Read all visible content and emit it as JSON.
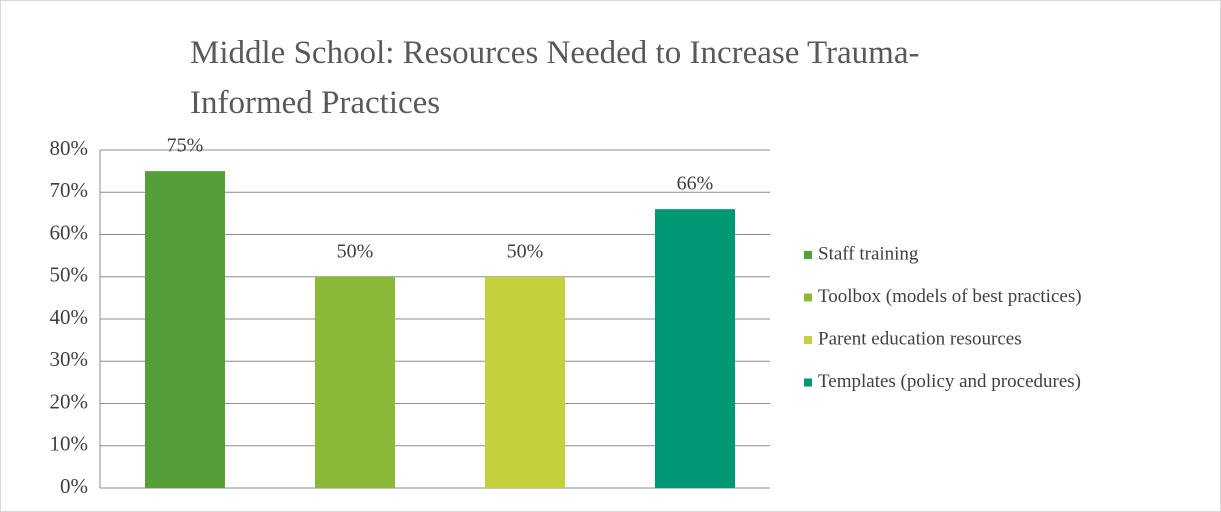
{
  "chart_data": {
    "type": "bar",
    "title": "Middle School: Resources Needed to Increase Trauma-Informed Practices",
    "categories": [
      "Staff training",
      "Toolbox (models of best practices)",
      "Parent education resources",
      "Templates (policy and procedures)"
    ],
    "values": [
      75,
      50,
      50,
      66
    ],
    "value_labels": [
      "75%",
      "50%",
      "50%",
      "66%"
    ],
    "colors": [
      "#559e3a",
      "#8cb838",
      "#c4d13c",
      "#009775"
    ],
    "ylim": [
      0,
      80
    ],
    "yticks": [
      {
        "value": 0,
        "label": "0%"
      },
      {
        "value": 10,
        "label": "10%"
      },
      {
        "value": 20,
        "label": "20%"
      },
      {
        "value": 30,
        "label": "30%"
      },
      {
        "value": 40,
        "label": "40%"
      },
      {
        "value": 50,
        "label": "50%"
      },
      {
        "value": 60,
        "label": "60%"
      },
      {
        "value": 70,
        "label": "70%"
      },
      {
        "value": 80,
        "label": "80%"
      }
    ],
    "grid": true,
    "legend": "right"
  }
}
